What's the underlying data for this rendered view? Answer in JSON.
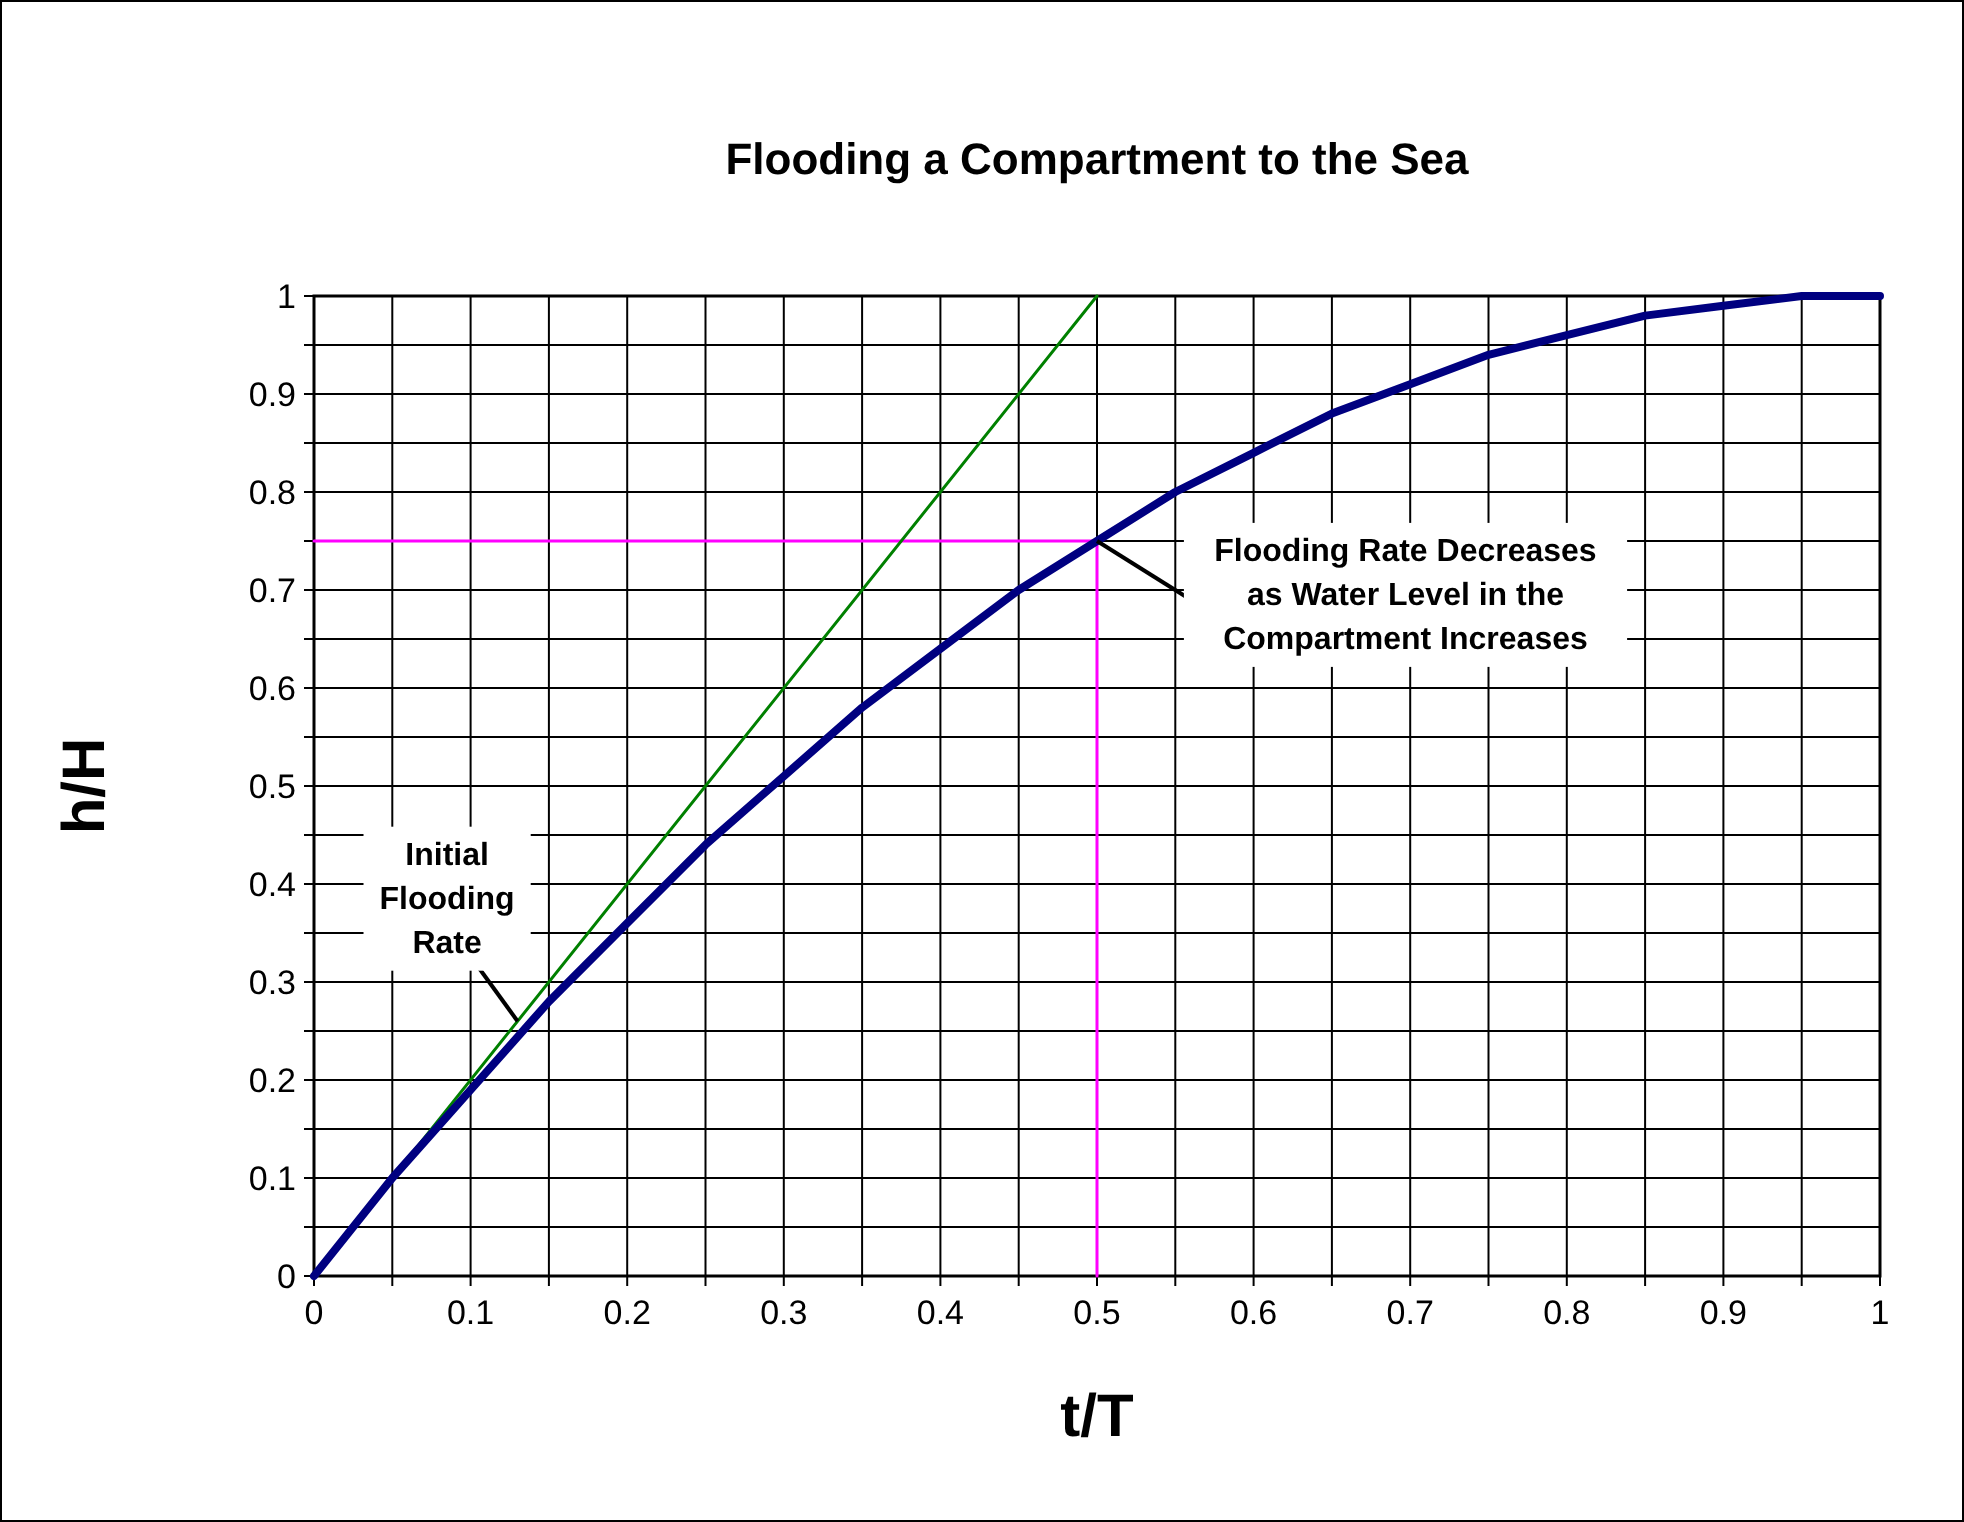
{
  "chart_data": {
    "type": "line",
    "title": "Flooding a Compartment to the Sea",
    "xlabel": "t/T",
    "ylabel": "h/H",
    "xlim": [
      0,
      1
    ],
    "ylim": [
      0,
      1
    ],
    "xticks": [
      0,
      {
        "value": 0.05,
        "label": null
      },
      0.1,
      {
        "value": 0.15,
        "label": null
      },
      0.2,
      {
        "value": 0.25,
        "label": null
      },
      0.3,
      {
        "value": 0.35,
        "label": null
      },
      0.4,
      {
        "value": 0.45,
        "label": null
      },
      0.5,
      {
        "value": 0.55,
        "label": null
      },
      0.6,
      {
        "value": 0.65,
        "label": null
      },
      0.7,
      {
        "value": 0.75,
        "label": null
      },
      0.8,
      {
        "value": 0.85,
        "label": null
      },
      0.9,
      {
        "value": 0.95,
        "label": null
      },
      1
    ],
    "yticks": [
      0,
      {
        "value": 0.05,
        "label": null
      },
      0.1,
      {
        "value": 0.15,
        "label": null
      },
      0.2,
      {
        "value": 0.25,
        "label": null
      },
      0.3,
      {
        "value": 0.35,
        "label": null
      },
      0.4,
      {
        "value": 0.45,
        "label": null
      },
      0.5,
      {
        "value": 0.55,
        "label": null
      },
      0.6,
      {
        "value": 0.65,
        "label": null
      },
      0.7,
      {
        "value": 0.75,
        "label": null
      },
      0.8,
      {
        "value": 0.85,
        "label": null
      },
      0.9,
      {
        "value": 0.95,
        "label": null
      },
      1
    ],
    "grid": true,
    "series": [
      {
        "color": "#000080",
        "x": [
          0,
          0.05,
          0.1,
          0.15,
          0.2,
          0.25,
          0.3,
          0.35,
          0.4,
          0.45,
          0.5,
          0.55,
          0.6,
          0.65,
          0.7,
          0.75,
          0.8,
          0.85,
          0.9,
          0.95,
          1
        ],
        "values": [
          0,
          0.1,
          0.19,
          0.28,
          0.36,
          0.44,
          0.51,
          0.58,
          0.64,
          0.7,
          0.75,
          0.8,
          0.84,
          0.88,
          0.91,
          0.94,
          0.96,
          0.98,
          0.99,
          1,
          1
        ]
      },
      {
        "color": "#008000",
        "x": [
          0,
          0.5
        ],
        "values": [
          0,
          1
        ]
      },
      {
        "color": "#ff00ff",
        "x": [
          0,
          0.5,
          0.5
        ],
        "values": [
          0.75,
          0.75,
          0
        ]
      }
    ],
    "annotations": [
      {
        "text": "Initial Flooding Rate",
        "x": 0.13,
        "y": 0.26
      },
      {
        "text": "Flooding Rate Decreases as Water Level in the Compartment Increases",
        "x": 0.5,
        "y": 0.75
      }
    ]
  }
}
